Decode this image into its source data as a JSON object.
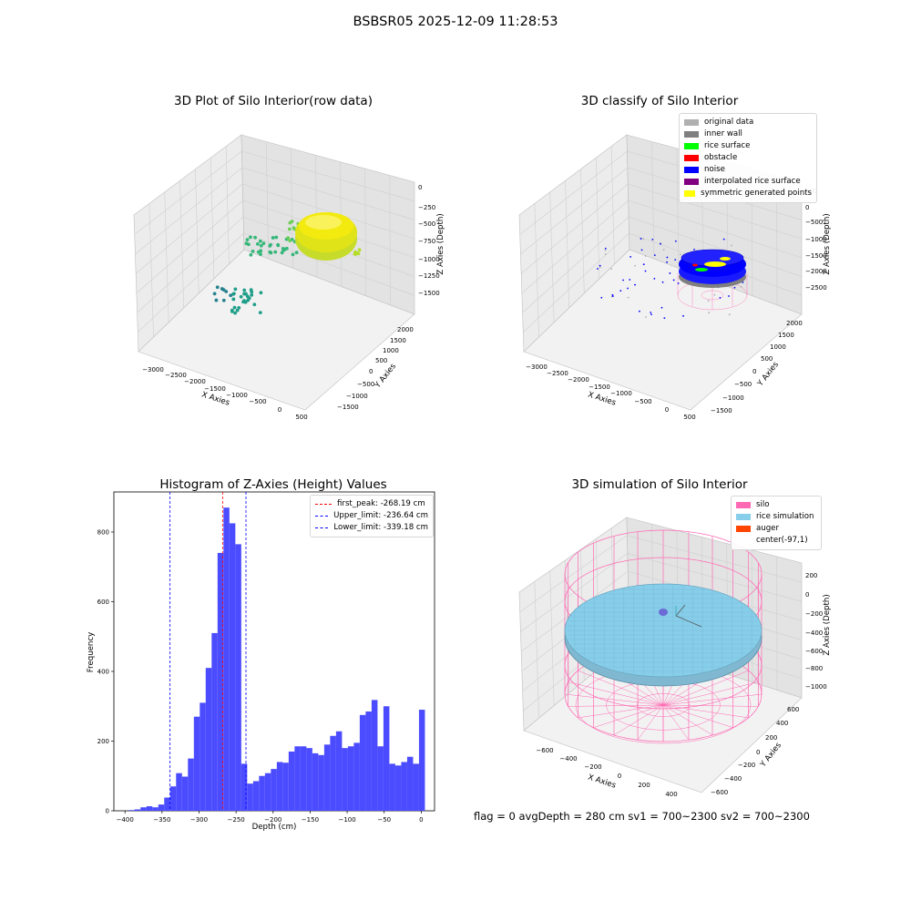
{
  "suptitle": "BSBSR05 2025-12-09 11:28:53",
  "footer": "flag = 0     avgDepth = 280 cm  sv1 = 700~2300  sv2 = 700~2300",
  "colors": {
    "original": "#b0b0b0",
    "inner_wall": "#7f7f7f",
    "rice_surface": "#00ff00",
    "obstacle": "#ff0000",
    "noise": "#0000ff",
    "interpolated": "#800080",
    "symmetric": "#ffff00",
    "silo": "#ff69b4",
    "rice_sim": "#87ceeb",
    "auger": "#ff4500",
    "hist_bar": "#4b4bff"
  },
  "plot1": {
    "title": "3D Plot of Silo Interior(row data)",
    "xlabel": "X Axies",
    "ylabel": "Y Axies",
    "zlabel": "Z Axies (Depth)",
    "xticks": [
      "−3000",
      "−2500",
      "−2000",
      "−1500",
      "−1000",
      "−500",
      "0",
      "500"
    ],
    "yticks": [
      "−1500",
      "−1000",
      "−500",
      "0",
      "500",
      "1000",
      "1500",
      "2000"
    ],
    "zticks": [
      "0",
      "−250",
      "−500",
      "−750",
      "−1000",
      "−1250",
      "−1500"
    ]
  },
  "plot2": {
    "title": "3D classify of Silo Interior",
    "xlabel": "X Axies",
    "ylabel": "Y Axies",
    "zlabel": "Z Axies (Depth)",
    "xticks": [
      "−3000",
      "−2500",
      "−2000",
      "−1500",
      "−1000",
      "−500",
      "0",
      "500"
    ],
    "yticks": [
      "−1500",
      "−1000",
      "−500",
      "0",
      "500",
      "1000",
      "1500",
      "2000"
    ],
    "zticks": [
      "500",
      "0",
      "−500",
      "−1000",
      "−1500",
      "−2000",
      "−2500"
    ],
    "legend": [
      {
        "label": "original data",
        "color": "#b0b0b0"
      },
      {
        "label": "inner wall",
        "color": "#7f7f7f"
      },
      {
        "label": "rice surface",
        "color": "#00ff00"
      },
      {
        "label": "obstacle",
        "color": "#ff0000"
      },
      {
        "label": "noise",
        "color": "#0000ff"
      },
      {
        "label": "interpolated rice surface",
        "color": "#800080"
      },
      {
        "label": "symmetric generated points",
        "color": "#ffff00"
      }
    ]
  },
  "plot4": {
    "title": "3D simulation of Silo Interior",
    "xlabel": "X Axies",
    "ylabel": "Y Axies",
    "zlabel": "Z Axies (Depth)",
    "xticks": [
      "−600",
      "−400",
      "−200",
      "0",
      "200",
      "400"
    ],
    "yticks": [
      "−600",
      "−400",
      "−200",
      "0",
      "200",
      "400",
      "600"
    ],
    "zticks": [
      "200",
      "0",
      "−200",
      "−400",
      "−600",
      "−800",
      "−1000"
    ],
    "legend": [
      {
        "label": "silo",
        "color": "#ff69b4"
      },
      {
        "label": "rice simulation",
        "color": "#87ceeb"
      },
      {
        "label": "auger",
        "color": "#ff4500"
      },
      {
        "label": "center(-97,1)",
        "color": ""
      }
    ]
  },
  "chart_data": {
    "type": "bar",
    "title": "Histogram of Z-Axies (Height) Values",
    "xlabel": "Depth (cm)",
    "ylabel": "Frequency",
    "xlim": [
      -415,
      18
    ],
    "ylim": [
      0,
      915
    ],
    "xticks": [
      -400,
      -350,
      -300,
      -250,
      -200,
      -150,
      -100,
      -50,
      0
    ],
    "yticks": [
      0,
      200,
      400,
      600,
      800
    ],
    "bin_width": 8,
    "bin_starts": [
      -395,
      -387,
      -379,
      -371,
      -363,
      -355,
      -347,
      -339,
      -331,
      -323,
      -315,
      -307,
      -299,
      -291,
      -283,
      -275,
      -267,
      -259,
      -251,
      -243,
      -235,
      -227,
      -219,
      -211,
      -203,
      -195,
      -187,
      -179,
      -171,
      -163,
      -155,
      -147,
      -139,
      -131,
      -123,
      -115,
      -107,
      -99,
      -91,
      -83,
      -75,
      -67,
      -59,
      -51,
      -43,
      -35,
      -27,
      -19,
      -11,
      -3
    ],
    "values": [
      2,
      4,
      10,
      13,
      10,
      18,
      38,
      70,
      108,
      98,
      150,
      270,
      310,
      410,
      510,
      740,
      870,
      825,
      765,
      135,
      78,
      85,
      100,
      108,
      120,
      140,
      138,
      170,
      185,
      185,
      180,
      165,
      160,
      190,
      215,
      228,
      180,
      185,
      195,
      275,
      285,
      318,
      185,
      300,
      135,
      130,
      140,
      155,
      135,
      290
    ],
    "lines": [
      {
        "label": "first_peak: -268.19 cm",
        "x": -268.19,
        "color": "#ff0000"
      },
      {
        "label": "Upper_limit: -236.64 cm",
        "x": -236.64,
        "color": "#0000ff"
      },
      {
        "label": "Lower_limit: -339.18 cm",
        "x": -339.18,
        "color": "#0000ff"
      }
    ],
    "legend_position": "upper right"
  }
}
